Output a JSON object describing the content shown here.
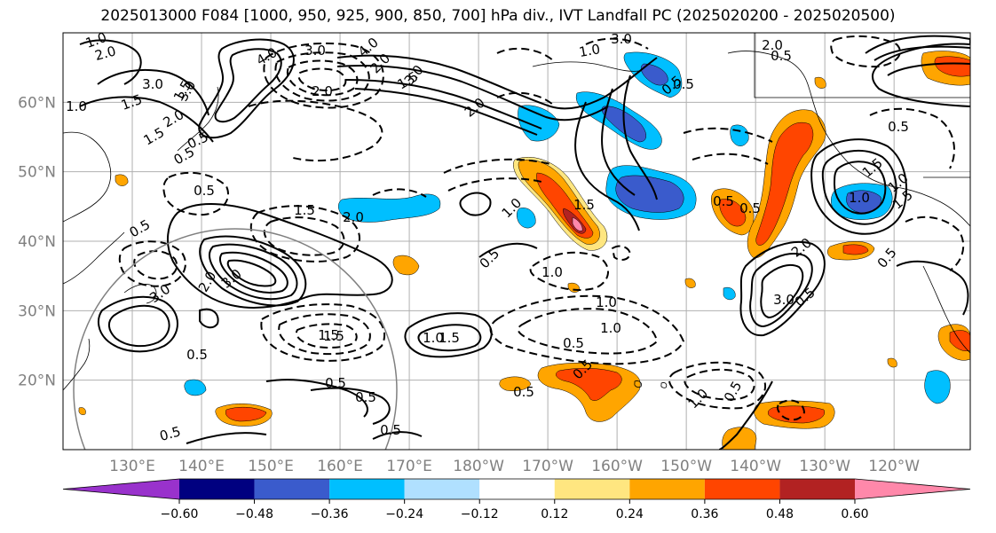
{
  "title": "2025013000 F084 [1000, 950, 925, 900, 850, 700] hPa div., IVT Landfall PC (2025020200 - 2025020500)",
  "map": {
    "projection": "PlateCarree (pacific-centered)",
    "extent": {
      "lon_min": 120,
      "lon_max": 251,
      "lat_min": 10,
      "lat_max": 70
    },
    "lon_ticks": [
      {
        "lon": 130,
        "label": "130°E"
      },
      {
        "lon": 140,
        "label": "140°E"
      },
      {
        "lon": 150,
        "label": "150°E"
      },
      {
        "lon": 160,
        "label": "160°E"
      },
      {
        "lon": 170,
        "label": "170°E"
      },
      {
        "lon": 180,
        "label": "180°W"
      },
      {
        "lon": 190,
        "label": "170°W"
      },
      {
        "lon": 200,
        "label": "160°W"
      },
      {
        "lon": 210,
        "label": "150°W"
      },
      {
        "lon": 220,
        "label": "140°W"
      },
      {
        "lon": 230,
        "label": "130°W"
      },
      {
        "lon": 240,
        "label": "120°W"
      }
    ],
    "lat_ticks": [
      {
        "lat": 20,
        "label": "20°N"
      },
      {
        "lat": 30,
        "label": "30°N"
      },
      {
        "lat": 40,
        "label": "40°N"
      },
      {
        "lat": 50,
        "label": "50°N"
      },
      {
        "lat": 60,
        "label": "60°N"
      }
    ],
    "grid": true,
    "fill_field": "IVT Landfall PC (shaded)",
    "contour_field": "divergence (contours, dashed = negative)"
  },
  "colorbar": {
    "extend": "both",
    "colors": [
      "#9932cc",
      "#000080",
      "#3a5bcc",
      "#00bfff",
      "#b0e0ff",
      "#ffffff",
      "#ffe680",
      "#ffa500",
      "#ff4500",
      "#b22222",
      "#ff88aa"
    ],
    "tick_labels": [
      "−0.60",
      "−0.48",
      "−0.36",
      "−0.24",
      "−0.12",
      "0.12",
      "0.24",
      "0.36",
      "0.48",
      "0.60"
    ]
  },
  "contour_labels": [
    "1.0",
    "2.0",
    "1.5",
    "3.0",
    "2.0",
    "1.0",
    "1.5",
    "0.5",
    "0.5",
    "0.5",
    "0.5",
    "3.0",
    "4.0",
    "3.0",
    "2.0",
    "2.0",
    "1.5",
    "3.0",
    "2.0",
    "3.0",
    "1.5",
    "4.0",
    "3.0",
    "0.5",
    "1.0",
    "0.5",
    "1.0",
    "1.5",
    "2.0",
    "1.5",
    "0.5",
    "1.0",
    "0.5",
    "1.0",
    "1.5",
    "0.5",
    "0.5",
    "1.5",
    "1.0",
    "0.5",
    "0.5",
    "1.0",
    "0.5",
    "2.0",
    "3.0",
    "0.5",
    "1.5",
    "1.0",
    "1.5",
    "1.0",
    "2.0",
    "0.5",
    "0.5",
    "0.5",
    "0.5",
    "1.0",
    "1.5",
    "0.5",
    "0.5",
    "0.5",
    "0.5",
    "3.0",
    "2.0"
  ]
}
